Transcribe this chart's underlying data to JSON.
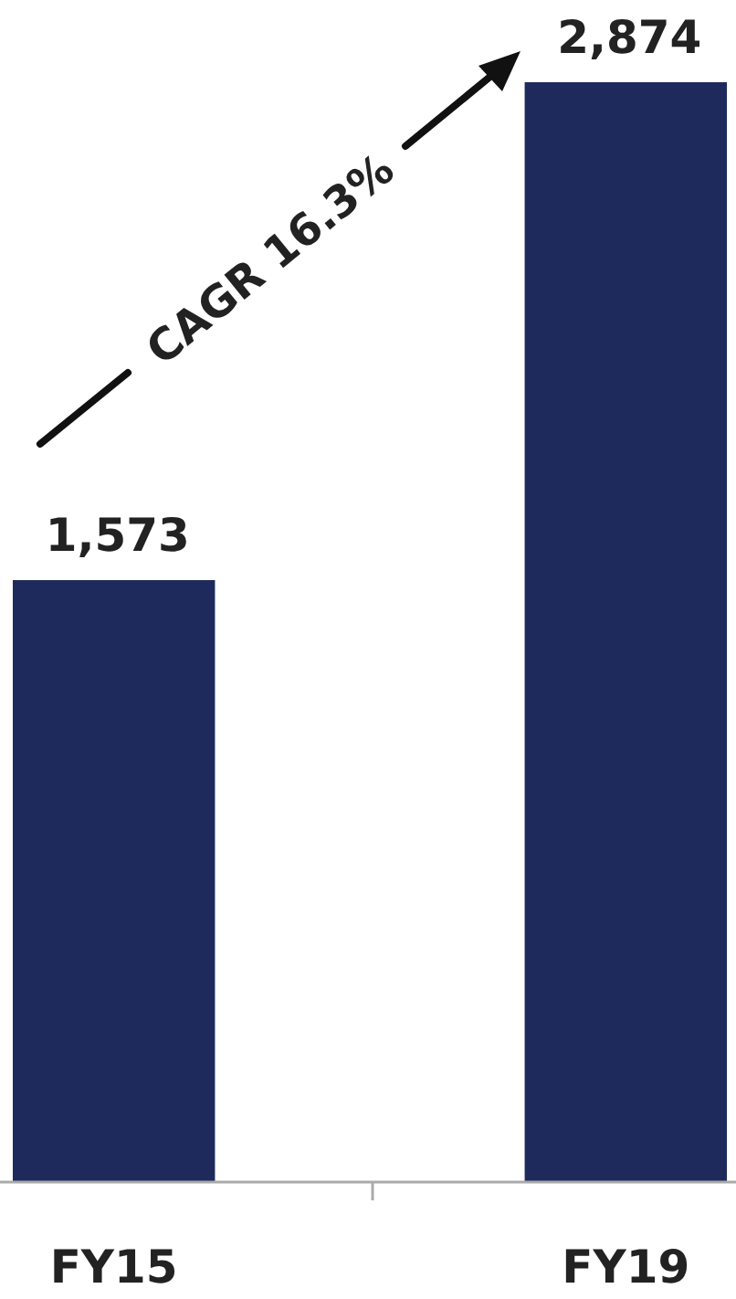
{
  "chart_data": {
    "type": "bar",
    "categories": [
      "FY15",
      "FY19"
    ],
    "values": [
      1573,
      2874
    ],
    "color": "#1f2a5c",
    "value_labels": [
      "1,573",
      "2,874"
    ],
    "annotations": [
      "CAGR 16.3%"
    ]
  }
}
